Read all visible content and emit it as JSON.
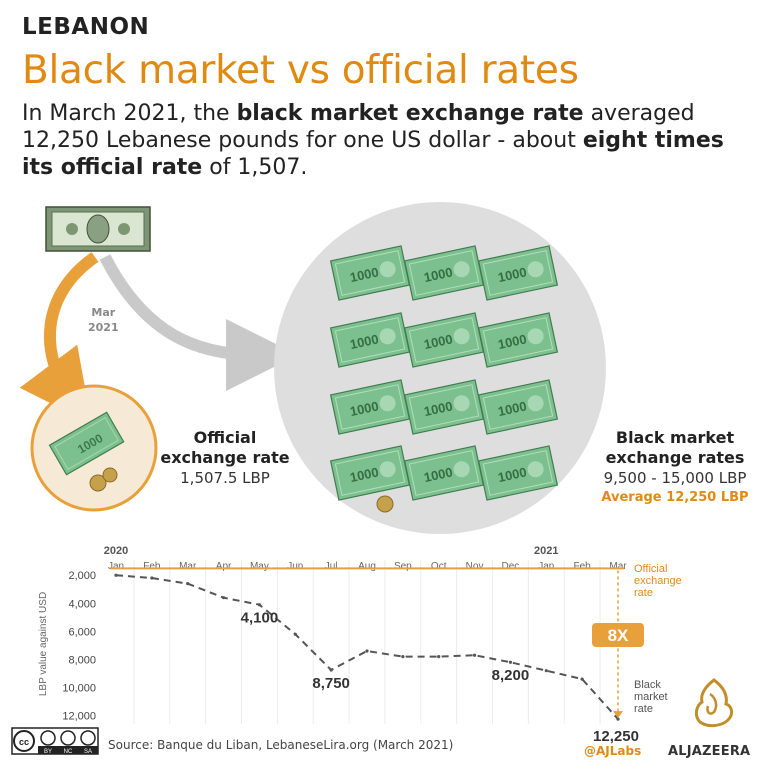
{
  "header": {
    "kicker": "LEBANON",
    "title": "Black market vs official rates",
    "subtitle_parts": [
      {
        "text": "In March 2021, the ",
        "bold": false
      },
      {
        "text": "black market exchange rate",
        "bold": true
      },
      {
        "text": " averaged 12,250 Lebanese pounds for one US dollar - about ",
        "bold": false
      },
      {
        "text": "eight times its official rate",
        "bold": true
      },
      {
        "text": " of 1,507.",
        "bold": false
      }
    ]
  },
  "illustration": {
    "arrow_label_line1": "Mar",
    "arrow_label_line2": "2021",
    "note_text": "1000",
    "official": {
      "line1": "Official",
      "line2": "exchange rate",
      "value": "1,507.5 LBP"
    },
    "black": {
      "line1": "Black market",
      "line2": "exchange rates",
      "range": "9,500 - 15,000 LBP",
      "average": "Average 12,250 LBP"
    },
    "colors": {
      "orange": "#e8a03a",
      "gray_circle": "#dedede",
      "note_green": "#7cc08f"
    }
  },
  "chart_data": {
    "type": "line",
    "x": [
      "Jan",
      "Feb",
      "Mar",
      "Apr",
      "May",
      "Jun",
      "Jul",
      "Aug",
      "Sep",
      "Oct",
      "Nov",
      "Dec",
      "Jan",
      "Feb",
      "Mar"
    ],
    "year_labels": [
      "2020",
      "2021"
    ],
    "ylabel": "LBP value against USD",
    "ylim": [
      1200,
      12600
    ],
    "y_ticks": [
      2000,
      4000,
      6000,
      8000,
      10000,
      12000
    ],
    "y_tick_labels": [
      "2,000",
      "4,000",
      "6,000",
      "8,000",
      "10,000",
      "12,000"
    ],
    "axis_inverted": true,
    "series": [
      {
        "name": "Official exchange rate",
        "color": "#e8a03a",
        "values": [
          1507.5,
          1507.5,
          1507.5,
          1507.5,
          1507.5,
          1507.5,
          1507.5,
          1507.5,
          1507.5,
          1507.5,
          1507.5,
          1507.5,
          1507.5,
          1507.5,
          1507.5
        ]
      },
      {
        "name": "Black market rate",
        "color": "#555555",
        "values": [
          2000,
          2200,
          2600,
          3600,
          4100,
          6200,
          8750,
          7400,
          7800,
          7800,
          7700,
          8200,
          8800,
          9400,
          12250
        ]
      }
    ],
    "series_labels": {
      "official": [
        "Official",
        "exchange",
        "rate"
      ],
      "black": [
        "Black",
        "market",
        "rate"
      ]
    },
    "annotations": [
      {
        "x_index": 4,
        "value": 4100,
        "text": "4,100"
      },
      {
        "x_index": 6,
        "value": 8750,
        "text": "8,750"
      },
      {
        "x_index": 11,
        "value": 8200,
        "text": "8,200"
      },
      {
        "x_index": 14,
        "value": 12250,
        "text": "12,250"
      }
    ],
    "multiplier_badge": "8X",
    "grid": true,
    "grid_axis": "x"
  },
  "footer": {
    "cc_icons": [
      "cc",
      "by",
      "nc",
      "sa"
    ],
    "cc_tags": [
      "BY",
      "NC",
      "SA"
    ],
    "source": "Source: Banque du Liban, LebaneseLira.org (March 2021)",
    "handle": "@AJLabs",
    "brand": "ALJAZEERA"
  }
}
